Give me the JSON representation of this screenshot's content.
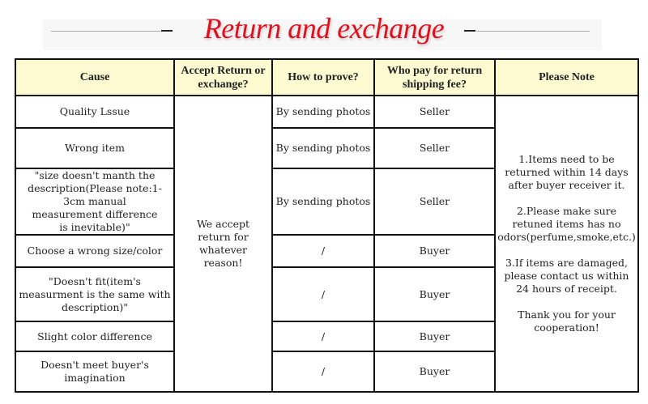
{
  "title": "Return and exchange",
  "table": {
    "headers": [
      "Cause",
      "Accept Return or exchange?",
      "How to prove?",
      "Who pay for return shipping fee?",
      "Please Note"
    ],
    "rows": [
      {
        "cause": "Quality Lssue",
        "prove": "By sending photos",
        "payer": "Seller"
      },
      {
        "cause": "Wrong item",
        "prove": "By sending photos",
        "payer": "Seller"
      },
      {
        "cause": "\"size doesn't manth the description(Please note:1-3cm manual measurement difference is inevitable)\"",
        "prove": "By sending photos",
        "payer": "Seller"
      },
      {
        "cause": "Choose a wrong size/color",
        "prove": "/",
        "payer": "Buyer"
      },
      {
        "cause": "\"Doesn't fit(item's measurment is the same with description)\"",
        "prove": "/",
        "payer": "Buyer"
      },
      {
        "cause": "Slight color difference",
        "prove": "/",
        "payer": "Buyer"
      },
      {
        "cause": "Doesn't meet buyer's imagination",
        "prove": "/",
        "payer": "Buyer"
      }
    ],
    "accept": "We accept return for whatever reason!",
    "notes": [
      "1.Items need to be returned within 14 days after buyer receiver it.",
      "2.Please make sure retuned items has no odors(perfume,smoke,etc.)",
      "3.If items are damaged, please contact us within 24 hours of receipt.",
      "Thank you for your cooperation!"
    ]
  }
}
